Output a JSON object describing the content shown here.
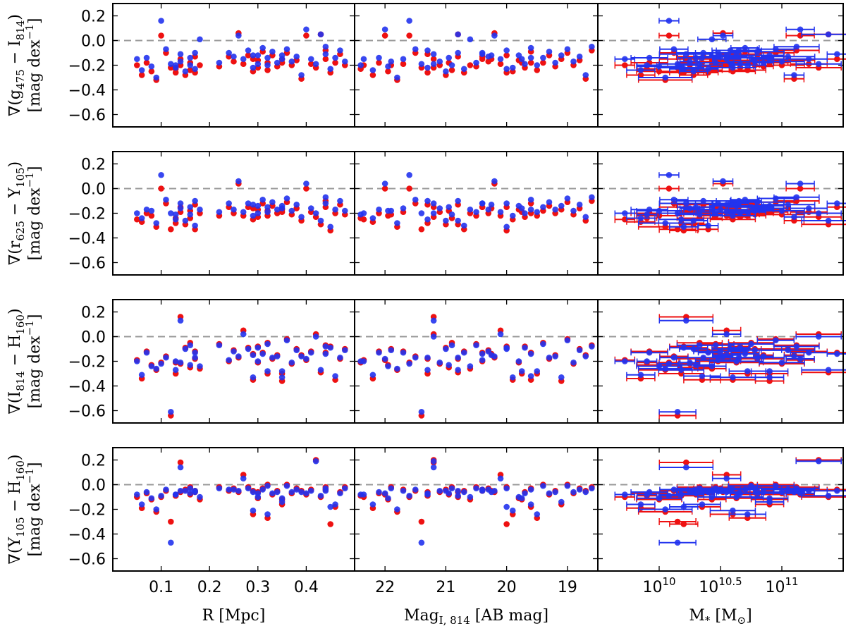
{
  "chart_data": {
    "type": "scatter",
    "yticks": [
      0.2,
      0.0,
      -0.2,
      -0.4,
      -0.6
    ],
    "ylim": [
      -0.7,
      0.3
    ],
    "rows": [
      {
        "ylabel": {
          "main": "∇(g",
          "s1": "475",
          "mid": " − I",
          "s2": "814",
          "end": ")"
        }
      },
      {
        "ylabel": {
          "main": "∇(r",
          "s1": "625",
          "mid": " − Y",
          "s2": "105",
          "end": ")"
        }
      },
      {
        "ylabel": {
          "main": "∇(I",
          "s1": "814",
          "mid": " − H",
          "s2": "160",
          "end": ")"
        }
      },
      {
        "ylabel": {
          "main": "∇(Y",
          "s1": "105",
          "mid": " − H",
          "s2": "160",
          "end": ")"
        }
      }
    ],
    "yunit": {
      "main": "[mag dex",
      "sup": "−1",
      "end": "]"
    },
    "columns": [
      {
        "xlabel": "R [Mpc]",
        "xlim": [
          0.0,
          0.5
        ],
        "xticks": [
          {
            "v": 0.1,
            "t": "0.1"
          },
          {
            "v": 0.2,
            "t": "0.2"
          },
          {
            "v": 0.3,
            "t": "0.3"
          },
          {
            "v": 0.4,
            "t": "0.4"
          }
        ]
      },
      {
        "xlabel": "Mag",
        "xlabel_sub": "I, 814",
        "xlabel_end": " [AB mag]",
        "xlim": [
          22.5,
          18.5
        ],
        "xticks": [
          {
            "v": 22,
            "t": "22"
          },
          {
            "v": 21,
            "t": "21"
          },
          {
            "v": 20,
            "t": "20"
          },
          {
            "v": 19,
            "t": "19"
          }
        ]
      },
      {
        "xlabel": "M",
        "xlabel_sub": "*",
        "xlabel_end": " [M",
        "xlabel_sun": "⊙",
        "xlabel_close": "]",
        "log": true,
        "xlim": [
          9.5,
          11.5
        ],
        "xticks": [
          {
            "v": 10,
            "base": "10",
            "exp": "10"
          },
          {
            "v": 10.5,
            "base": "10",
            "exp": "10.5"
          },
          {
            "v": 11,
            "base": "10",
            "exp": "11"
          }
        ]
      }
    ],
    "series": [
      {
        "name": "",
        "color": "#ee1111"
      },
      {
        "name": "",
        "color": "#2233ee"
      }
    ],
    "x_R": [
      0.05,
      0.06,
      0.07,
      0.08,
      0.09,
      0.1,
      0.11,
      0.12,
      0.13,
      0.14,
      0.14,
      0.15,
      0.16,
      0.16,
      0.17,
      0.17,
      0.18,
      0.22,
      0.24,
      0.25,
      0.26,
      0.27,
      0.28,
      0.29,
      0.3,
      0.3,
      0.31,
      0.32,
      0.32,
      0.33,
      0.34,
      0.35,
      0.36,
      0.37,
      0.38,
      0.39,
      0.4,
      0.41,
      0.42,
      0.43,
      0.44,
      0.45,
      0.46,
      0.47,
      0.48,
      0.13,
      0.29,
      0.35,
      0.44
    ],
    "x_Mag": [
      22.35,
      22.2,
      22.1,
      21.95,
      21.8,
      21.6,
      21.5,
      21.4,
      21.3,
      21.2,
      21.1,
      21.0,
      20.95,
      20.9,
      20.8,
      20.7,
      20.6,
      20.5,
      20.4,
      20.3,
      20.2,
      20.1,
      20.0,
      19.9,
      19.8,
      19.7,
      19.6,
      19.5,
      19.4,
      19.3,
      19.2,
      19.1,
      19.0,
      18.9,
      18.8,
      18.7,
      22.0,
      21.7,
      21.2,
      20.8,
      20.4,
      20.0,
      19.6,
      21.3,
      21.9,
      22.4,
      20.25,
      19.75,
      18.6
    ],
    "x_M": [
      9.72,
      9.85,
      9.92,
      10.0,
      10.05,
      10.08,
      10.12,
      10.15,
      10.18,
      10.22,
      10.25,
      10.28,
      10.3,
      10.33,
      10.36,
      10.4,
      10.43,
      10.46,
      10.48,
      10.5,
      10.52,
      10.55,
      10.58,
      10.6,
      10.63,
      10.66,
      10.7,
      10.72,
      10.75,
      10.8,
      10.85,
      10.9,
      10.95,
      11.0,
      11.05,
      11.1,
      11.15,
      11.22,
      11.3,
      11.38,
      11.45,
      10.2,
      10.35,
      10.65,
      10.78,
      9.9,
      10.55,
      10.9,
      11.12
    ],
    "y_g_r": [
      -0.2,
      -0.28,
      -0.18,
      -0.25,
      -0.32,
      0.04,
      -0.1,
      -0.22,
      -0.26,
      -0.15,
      -0.2,
      -0.28,
      -0.18,
      -0.24,
      -0.13,
      -0.26,
      -0.2,
      -0.21,
      -0.13,
      -0.17,
      0.06,
      -0.19,
      -0.12,
      -0.25,
      -0.16,
      -0.22,
      -0.09,
      -0.24,
      -0.18,
      -0.12,
      -0.21,
      -0.15,
      -0.1,
      -0.2,
      -0.16,
      -0.31,
      0.04,
      -0.19,
      -0.22,
      0.05,
      -0.15,
      -0.26,
      -0.18,
      -0.11,
      -0.2,
      -0.23,
      -0.15,
      -0.18,
      -0.08
    ],
    "y_g_b": [
      -0.15,
      -0.24,
      -0.14,
      -0.21,
      -0.3,
      0.16,
      -0.07,
      -0.19,
      -0.22,
      -0.11,
      -0.17,
      -0.25,
      -0.14,
      -0.2,
      -0.1,
      -0.23,
      0.01,
      -0.18,
      -0.1,
      -0.13,
      0.04,
      -0.15,
      -0.08,
      -0.22,
      -0.12,
      -0.19,
      -0.06,
      -0.2,
      -0.14,
      -0.09,
      -0.18,
      -0.12,
      -0.07,
      -0.17,
      -0.13,
      -0.28,
      0.09,
      -0.15,
      -0.19,
      0.05,
      -0.11,
      -0.23,
      -0.14,
      -0.08,
      -0.17,
      -0.2,
      -0.12,
      -0.15,
      -0.05
    ],
    "y_r_r": [
      -0.25,
      -0.27,
      -0.2,
      -0.22,
      -0.31,
      0.0,
      -0.12,
      -0.33,
      -0.28,
      -0.15,
      -0.19,
      -0.29,
      -0.18,
      -0.24,
      -0.13,
      -0.33,
      -0.2,
      -0.22,
      -0.15,
      -0.2,
      0.04,
      -0.22,
      -0.15,
      -0.25,
      -0.17,
      -0.23,
      -0.12,
      -0.22,
      -0.18,
      -0.14,
      -0.2,
      -0.17,
      -0.11,
      -0.21,
      -0.16,
      -0.26,
      0.0,
      -0.19,
      -0.23,
      -0.29,
      -0.15,
      -0.34,
      -0.2,
      -0.13,
      -0.21,
      -0.24,
      -0.16,
      -0.19,
      -0.1
    ],
    "y_r_b": [
      -0.2,
      -0.24,
      -0.17,
      -0.18,
      -0.28,
      0.11,
      -0.09,
      -0.2,
      -0.25,
      -0.12,
      -0.16,
      -0.26,
      -0.15,
      -0.21,
      -0.1,
      -0.3,
      -0.17,
      -0.19,
      -0.12,
      -0.17,
      0.06,
      -0.19,
      -0.12,
      -0.22,
      -0.14,
      -0.2,
      -0.09,
      -0.19,
      -0.15,
      -0.11,
      -0.17,
      -0.14,
      -0.08,
      -0.18,
      -0.13,
      -0.23,
      0.04,
      -0.16,
      -0.2,
      -0.26,
      -0.12,
      -0.31,
      -0.17,
      -0.1,
      -0.18,
      -0.21,
      -0.13,
      -0.16,
      -0.07
    ],
    "y_i_r": [
      -0.19,
      -0.34,
      -0.12,
      -0.23,
      -0.27,
      -0.21,
      -0.16,
      -0.64,
      -0.3,
      0.16,
      -0.22,
      -0.09,
      -0.25,
      -0.05,
      -0.18,
      -0.12,
      -0.26,
      -0.06,
      -0.2,
      -0.11,
      -0.17,
      0.05,
      -0.09,
      -0.35,
      -0.21,
      -0.08,
      -0.13,
      -0.3,
      -0.05,
      -0.18,
      -0.15,
      -0.36,
      -0.02,
      -0.22,
      -0.1,
      -0.15,
      -0.19,
      -0.12,
      0.02,
      -0.29,
      -0.13,
      -0.08,
      -0.35,
      -0.18,
      -0.1,
      -0.21,
      -0.14,
      -0.3,
      -0.07
    ],
    "y_i_b": [
      -0.2,
      -0.31,
      -0.13,
      -0.24,
      -0.26,
      -0.22,
      -0.17,
      -0.61,
      -0.27,
      0.13,
      -0.21,
      -0.1,
      -0.23,
      -0.07,
      -0.17,
      -0.13,
      -0.24,
      -0.07,
      -0.19,
      -0.12,
      -0.16,
      0.02,
      -0.1,
      -0.33,
      -0.2,
      -0.09,
      -0.14,
      -0.28,
      -0.06,
      -0.17,
      -0.16,
      -0.33,
      -0.03,
      -0.21,
      -0.11,
      -0.16,
      -0.18,
      -0.13,
      0.0,
      -0.27,
      -0.14,
      -0.09,
      -0.32,
      -0.17,
      -0.11,
      -0.2,
      -0.15,
      -0.28,
      -0.08
    ],
    "y_y_r": [
      -0.1,
      -0.19,
      -0.07,
      -0.12,
      -0.22,
      -0.1,
      -0.05,
      -0.3,
      -0.09,
      0.18,
      -0.06,
      -0.04,
      -0.08,
      -0.02,
      -0.06,
      -0.05,
      -0.12,
      -0.02,
      -0.05,
      -0.03,
      -0.06,
      0.08,
      -0.02,
      -0.24,
      -0.11,
      -0.06,
      -0.03,
      -0.27,
      0.0,
      -0.08,
      -0.05,
      -0.16,
      0.0,
      -0.07,
      -0.03,
      -0.05,
      -0.08,
      -0.04,
      0.2,
      -0.1,
      -0.04,
      -0.32,
      -0.18,
      -0.06,
      -0.02,
      -0.09,
      -0.05,
      -0.12,
      -0.02
    ],
    "y_y_b": [
      -0.08,
      -0.16,
      -0.06,
      -0.11,
      -0.2,
      -0.09,
      -0.04,
      -0.47,
      -0.08,
      0.14,
      -0.05,
      -0.05,
      -0.07,
      -0.03,
      -0.05,
      -0.06,
      -0.1,
      -0.03,
      -0.04,
      -0.04,
      -0.05,
      0.05,
      -0.03,
      -0.21,
      -0.1,
      -0.07,
      -0.04,
      -0.24,
      -0.01,
      -0.07,
      -0.06,
      -0.14,
      -0.01,
      -0.06,
      -0.04,
      -0.06,
      -0.07,
      -0.05,
      0.19,
      -0.09,
      -0.05,
      -0.18,
      -0.16,
      -0.07,
      -0.03,
      -0.08,
      -0.06,
      -0.11,
      -0.03
    ]
  }
}
